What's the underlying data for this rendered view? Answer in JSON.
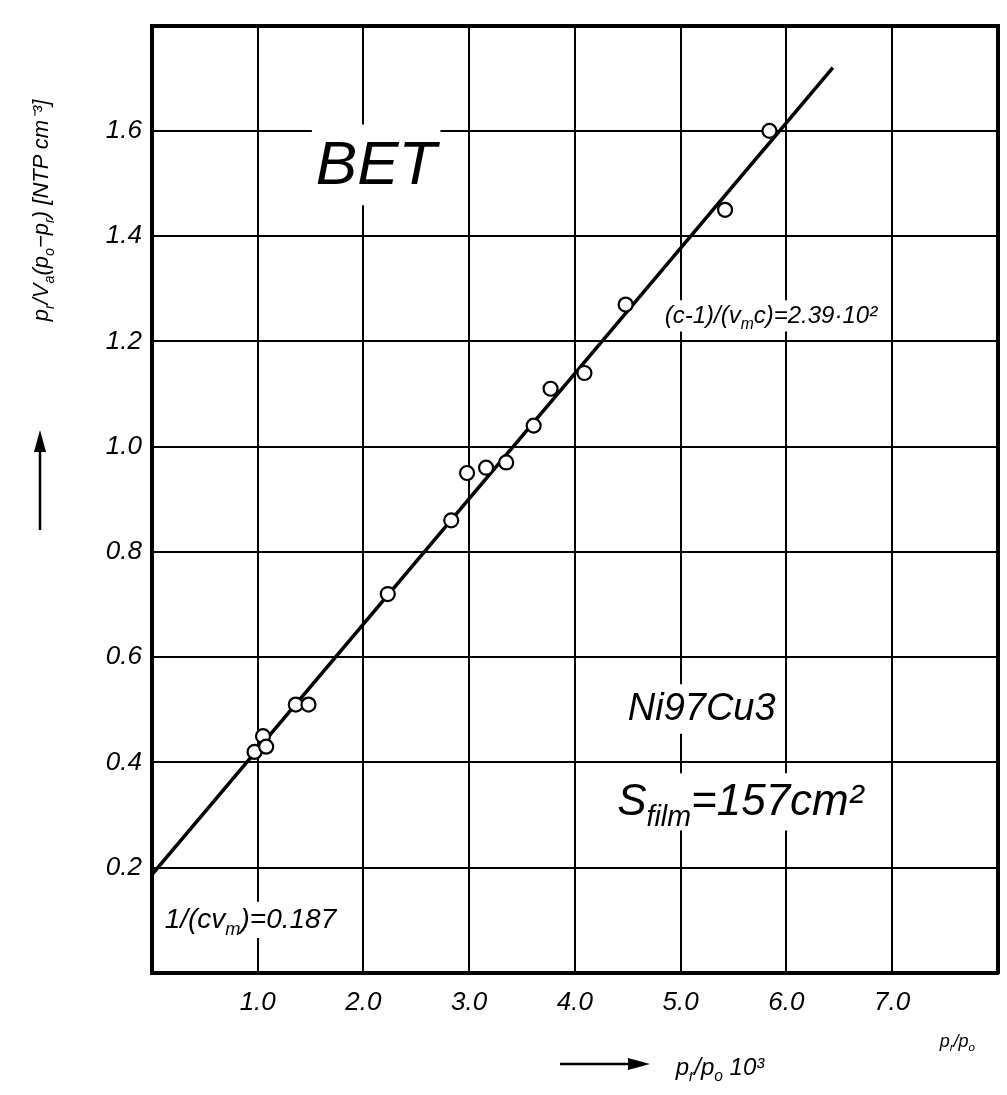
{
  "chart_data": {
    "type": "scatter",
    "xlabel": "p$_{r}$/p$_{o}$ 10³",
    "ylabel": "p$_{r}$/V$_{a}$(p$_{o}$−p$_{r}$) [NTP cm⁻³]",
    "annotations": [
      "BET",
      "Ni97Cu3",
      "S$_{film}$=157cm²",
      "(c-1)/(v$_{m}$c)=2.39·10²",
      "1/(cv$_{m}$)=0.187",
      "p$_{r}$/p$_{o}$"
    ],
    "series": [
      {
        "type": "line",
        "color": "#000000",
        "x": [
          0,
          6.44
        ],
        "values": [
          0.187,
          1.72
        ]
      },
      {
        "marker": "circle",
        "color": "#000000",
        "x": [
          0.97,
          1.05,
          1.08,
          1.36,
          1.48,
          2.23,
          2.83,
          2.98,
          3.16,
          3.35,
          3.61,
          3.77,
          4.09,
          4.48,
          5.42,
          5.84
        ],
        "values": [
          0.42,
          0.45,
          0.43,
          0.51,
          0.51,
          0.72,
          0.86,
          0.95,
          0.96,
          0.97,
          1.04,
          1.11,
          1.14,
          1.27,
          1.45,
          1.6
        ]
      }
    ],
    "xlim": [
      0,
      8
    ],
    "ylim": [
      0,
      1.8
    ],
    "xticks": [
      {
        "value": 1,
        "label": "1.0"
      },
      {
        "value": 2,
        "label": "2.0"
      },
      {
        "value": 3,
        "label": "3.0"
      },
      {
        "value": 4,
        "label": "4.0"
      },
      {
        "value": 5,
        "label": "5.0"
      },
      {
        "value": 6,
        "label": "6.0"
      },
      {
        "value": 7,
        "label": "7.0"
      }
    ],
    "yticks": [
      0.2,
      0.4,
      0.6,
      0.8,
      {
        "value": 1,
        "label": "1.0"
      },
      1.2,
      1.4,
      1.6
    ],
    "grid": true
  }
}
